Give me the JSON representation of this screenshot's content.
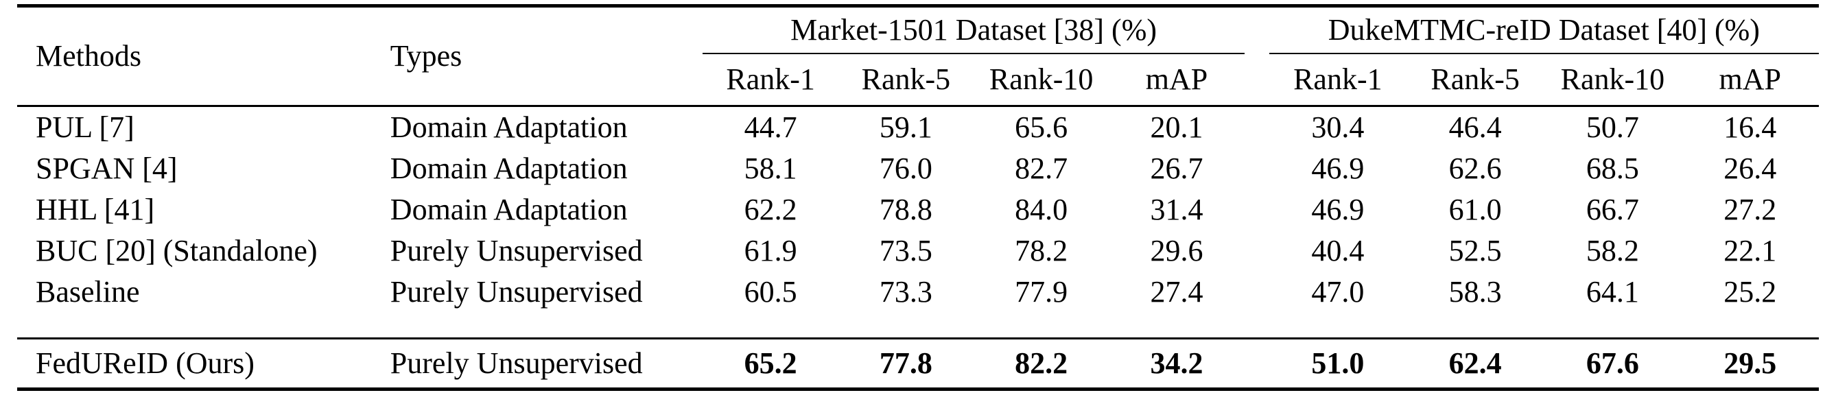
{
  "table": {
    "columns": {
      "methods": "Methods",
      "types": "Types"
    },
    "groups": [
      {
        "label": "Market-1501 Dataset [38] (%)",
        "metrics": [
          "Rank-1",
          "Rank-5",
          "Rank-10",
          "mAP"
        ]
      },
      {
        "label": "DukeMTMC-reID Dataset [40] (%)",
        "metrics": [
          "Rank-1",
          "Rank-5",
          "Rank-10",
          "mAP"
        ]
      }
    ],
    "rows": [
      {
        "method": "PUL [7]",
        "type": "Domain Adaptation",
        "market": [
          "44.7",
          "59.1",
          "65.6",
          "20.1"
        ],
        "duke": [
          "30.4",
          "46.4",
          "50.7",
          "16.4"
        ]
      },
      {
        "method": "SPGAN [4]",
        "type": "Domain Adaptation",
        "market": [
          "58.1",
          "76.0",
          "82.7",
          "26.7"
        ],
        "duke": [
          "46.9",
          "62.6",
          "68.5",
          "26.4"
        ]
      },
      {
        "method": "HHL [41]",
        "type": "Domain Adaptation",
        "market": [
          "62.2",
          "78.8",
          "84.0",
          "31.4"
        ],
        "duke": [
          "46.9",
          "61.0",
          "66.7",
          "27.2"
        ]
      },
      {
        "method": "BUC [20] (Standalone)",
        "type": "Purely Unsupervised",
        "market": [
          "61.9",
          "73.5",
          "78.2",
          "29.6"
        ],
        "duke": [
          "40.4",
          "52.5",
          "58.2",
          "22.1"
        ]
      },
      {
        "method": "Baseline",
        "type": "Purely Unsupervised",
        "market": [
          "60.5",
          "73.3",
          "77.9",
          "27.4"
        ],
        "duke": [
          "47.0",
          "58.3",
          "64.1",
          "25.2"
        ]
      },
      {
        "method": "FedUReID (Ours)",
        "type": "Purely Unsupervised",
        "market": [
          "65.2",
          "77.8",
          "82.2",
          "34.2"
        ],
        "duke": [
          "51.0",
          "62.4",
          "67.6",
          "29.5"
        ]
      }
    ]
  }
}
